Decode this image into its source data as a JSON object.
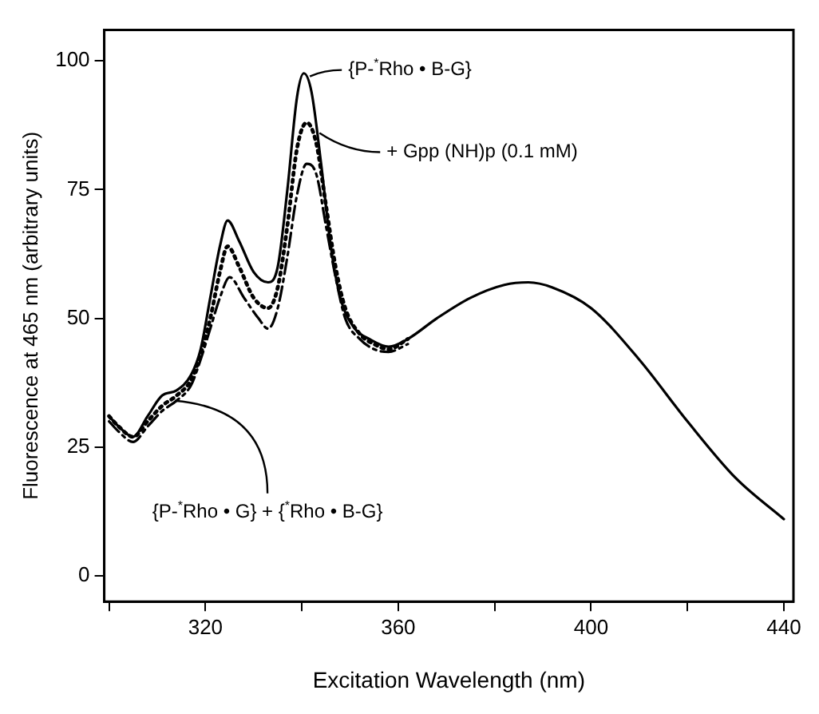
{
  "chart_data": {
    "type": "line",
    "xlabel": "Excitation Wavelength (nm)",
    "ylabel": "Fluorescence at 465 nm (arbitrary units)",
    "xlim": [
      299,
      442
    ],
    "xticks": [
      {
        "value": 300,
        "label": null
      },
      320,
      {
        "value": 340,
        "label": null
      },
      360,
      {
        "value": 380,
        "label": null
      },
      400,
      {
        "value": 420,
        "label": null
      },
      440
    ],
    "ylim": [
      -5,
      106
    ],
    "yticks": [
      0,
      25,
      50,
      75,
      100
    ],
    "grid": false,
    "legend": false,
    "marker": "none",
    "series": [
      {
        "color": "#000000",
        "line_style": "solid",
        "x": [
          300,
          302,
          305,
          308,
          311,
          314,
          317,
          319,
          321,
          323,
          324.6,
          327,
          330,
          333,
          335,
          337,
          339,
          340.4,
          342,
          344,
          346,
          348,
          351,
          354,
          358,
          362,
          368,
          375,
          382,
          387,
          392,
          400,
          410,
          420,
          430,
          440
        ],
        "values": [
          31,
          29,
          27,
          31,
          35,
          36,
          39,
          44,
          54,
          64,
          69,
          65,
          59,
          57,
          60,
          75,
          93,
          97.6,
          94,
          80,
          64,
          54,
          48,
          46,
          44.5,
          46,
          50,
          54,
          56.5,
          57,
          56,
          52,
          42,
          30,
          19,
          11
        ]
      },
      {
        "color": "#000000",
        "line_style": "dotted",
        "x": [
          300,
          302,
          305,
          308,
          311,
          314,
          317,
          319,
          321,
          323,
          324.6,
          327,
          330,
          333,
          335,
          337,
          339,
          341,
          343,
          345,
          347,
          349,
          352,
          355,
          358,
          362
        ],
        "values": [
          31,
          29,
          27,
          30,
          33,
          35,
          38,
          43,
          50,
          59,
          64,
          60,
          54,
          52,
          56,
          68,
          83,
          88,
          84,
          72,
          60,
          52,
          47,
          45,
          44,
          46
        ]
      },
      {
        "color": "#000000",
        "line_style": "dashed",
        "x": [
          300,
          302,
          305,
          308,
          311,
          314,
          317,
          319,
          321,
          323,
          325,
          328,
          331,
          333,
          335,
          337,
          339,
          341,
          343,
          345,
          347,
          349,
          352,
          355,
          358,
          362
        ],
        "values": [
          30,
          28,
          26,
          29,
          32,
          34,
          37,
          42,
          48,
          54,
          58,
          54,
          50,
          48,
          52,
          62,
          74,
          80,
          78,
          68,
          58,
          50,
          46,
          44,
          43.5,
          45
        ]
      }
    ],
    "annotations": [
      {
        "text": "{P-$^{*}$Rho • B-G}",
        "x": 341,
        "y": 97
      },
      {
        "text": "+ Gpp (NH)p (0.1 mM)",
        "x": 343,
        "y": 86
      },
      {
        "text": "{P-$^{*}$Rho • G} + {$^{*}$Rho • B-G}",
        "x": 313,
        "y": 34
      }
    ]
  }
}
